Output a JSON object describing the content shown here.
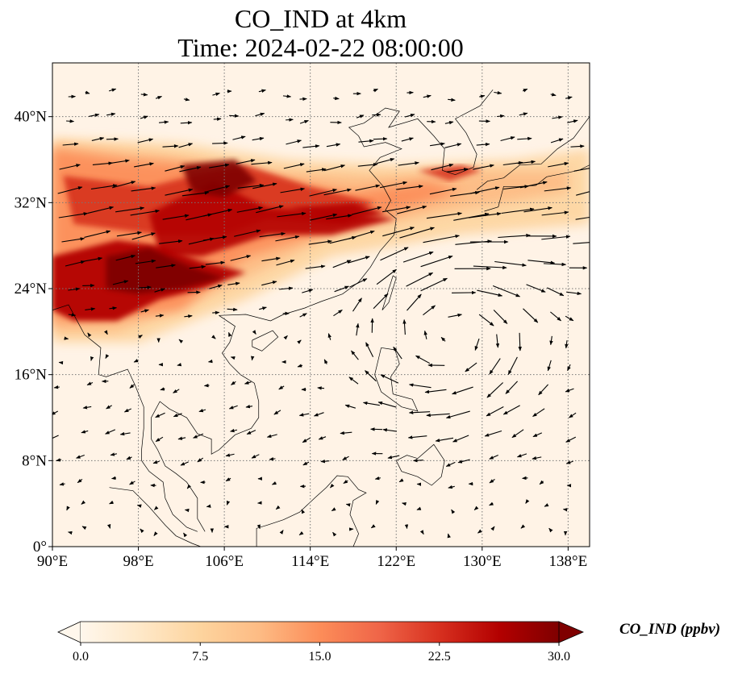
{
  "title": {
    "line1": "CO_IND at 4km",
    "line2": "Time: 2024-02-22 08:00:00"
  },
  "map": {
    "extent": {
      "lon": [
        90,
        140
      ],
      "lat": [
        0,
        45
      ]
    },
    "lon_ticks": [
      {
        "value": 90,
        "label": "90°E"
      },
      {
        "value": 98,
        "label": "98°E"
      },
      {
        "value": 106,
        "label": "106°E"
      },
      {
        "value": 114,
        "label": "114°E"
      },
      {
        "value": 122,
        "label": "122°E"
      },
      {
        "value": 130,
        "label": "130°E"
      },
      {
        "value": 138,
        "label": "138°E"
      }
    ],
    "lat_ticks": [
      {
        "value": 0,
        "label": "0°"
      },
      {
        "value": 8,
        "label": "8°N"
      },
      {
        "value": 16,
        "label": "16°N"
      },
      {
        "value": 24,
        "label": "24°N"
      },
      {
        "value": 32,
        "label": "32°N"
      },
      {
        "value": 40,
        "label": "40°N"
      }
    ],
    "gridlines": "dotted",
    "field": "CO_IND",
    "high_concentration_band": "southwest China to central/east China and Korea",
    "wind_vectors": "black arrows; strong westerlies north of 20°N, anticyclonic circulation east of Philippines"
  },
  "colorbar": {
    "label": "CO_IND (ppbv)",
    "min": 0,
    "max": 30,
    "ticks": [
      "0.0",
      "7.5",
      "15.0",
      "22.5",
      "30.0"
    ],
    "colormap": "OrRd",
    "extend": "both",
    "colors": [
      "#fff7ec",
      "#fee8c8",
      "#fdd49e",
      "#fdbb84",
      "#fc8d59",
      "#ef6548",
      "#d7301f",
      "#b30000",
      "#7f0000"
    ]
  }
}
